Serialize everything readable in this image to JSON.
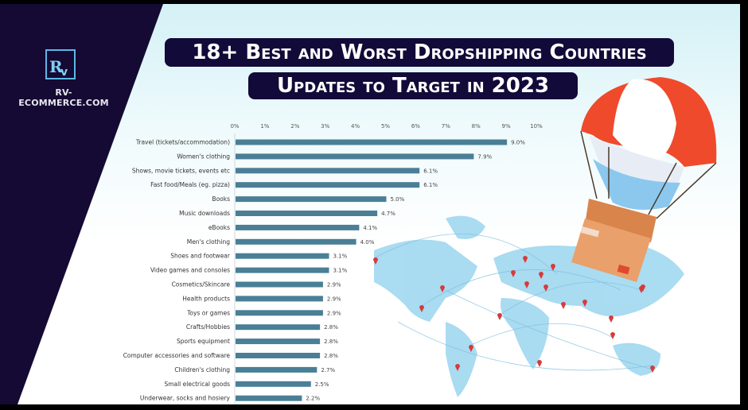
{
  "brand": {
    "site": "RV-ECOMMERCE.COM",
    "logo_letters": "Rv"
  },
  "title": {
    "line1": "18+ Best and Worst Dropshipping Countries",
    "line2": "Updates to Target in 2023"
  },
  "colors": {
    "panel": "#140a33",
    "bar": "#4a7f96",
    "parachute_red": "#ef4a2c",
    "box": "#e0925a",
    "map": "#9fd6ef",
    "pin": "#d83a3a"
  },
  "icons": [
    "rv-logo-icon",
    "parachute-box-illustration",
    "world-map-illustration",
    "map-pin-icon"
  ],
  "chart_data": {
    "type": "bar",
    "orientation": "horizontal",
    "categories": [
      "Travel (tickets/accommodation)",
      "Women's clothing",
      "Shows, movie tickets, events etc",
      "Fast food/Meals (eg. pizza)",
      "Books",
      "Music downloads",
      "eBooks",
      "Men's clothing",
      "Shoes and footwear",
      "Video games and consoles",
      "Cosmetics/Skincare",
      "Health products",
      "Toys or games",
      "Crafts/Hobbies",
      "Sports equipment",
      "Computer accessories and software",
      "Children's clothing",
      "Small electrical goods",
      "Underwear, socks and hosiery"
    ],
    "values": [
      9.0,
      7.9,
      6.1,
      6.1,
      5.0,
      4.7,
      4.1,
      4.0,
      3.1,
      3.1,
      2.9,
      2.9,
      2.9,
      2.8,
      2.8,
      2.8,
      2.7,
      2.5,
      2.2
    ],
    "value_labels": [
      "9.0%",
      "7.9%",
      "6.1%",
      "6.1%",
      "5.0%",
      "4.7%",
      "4.1%",
      "4.0%",
      "3.1%",
      "3.1%",
      "2.9%",
      "2.9%",
      "2.9%",
      "2.8%",
      "2.8%",
      "2.8%",
      "2.7%",
      "2.5%",
      "2.2%"
    ],
    "xticks": [
      "0%",
      "1%",
      "2%",
      "3%",
      "4%",
      "5%",
      "6%",
      "7%",
      "8%",
      "9%",
      "10%"
    ],
    "xlim": [
      0,
      10
    ],
    "title": "",
    "xlabel": "",
    "ylabel": "",
    "grid": false,
    "axis_position": "top"
  }
}
